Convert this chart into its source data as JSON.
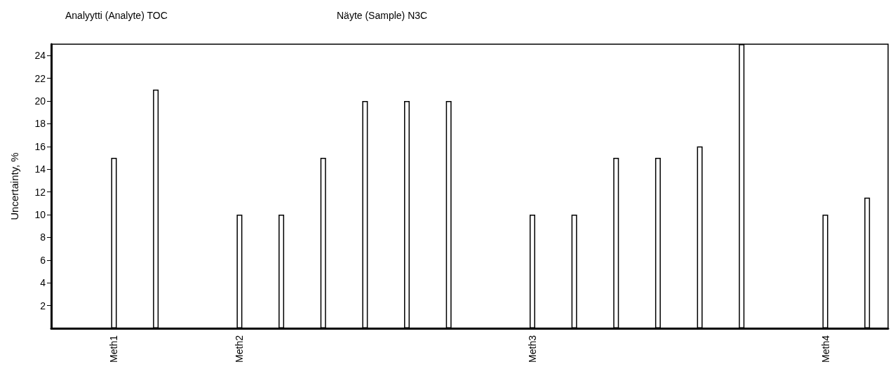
{
  "chart_data": {
    "type": "bar",
    "title": "Analyytti (Analyte) TOC",
    "subtitle": "Näyte (Sample) N3C",
    "ylabel": "Uncertainty, %",
    "categories": [
      null,
      "Meth1",
      null,
      null,
      "Meth2",
      null,
      null,
      null,
      null,
      null,
      null,
      "Meth3",
      null,
      null,
      null,
      null,
      null,
      null,
      "Meth4",
      null
    ],
    "values": [
      null,
      15,
      21,
      null,
      10,
      10,
      15,
      20,
      20,
      20,
      null,
      10,
      10,
      15,
      15,
      16,
      25,
      null,
      10,
      11.5
    ],
    "color": "#ffffff",
    "ylim": [
      0,
      25
    ],
    "yticks": [
      2,
      4,
      6,
      8,
      10,
      12,
      14,
      16,
      18,
      20,
      22,
      24
    ],
    "grid": false
  }
}
